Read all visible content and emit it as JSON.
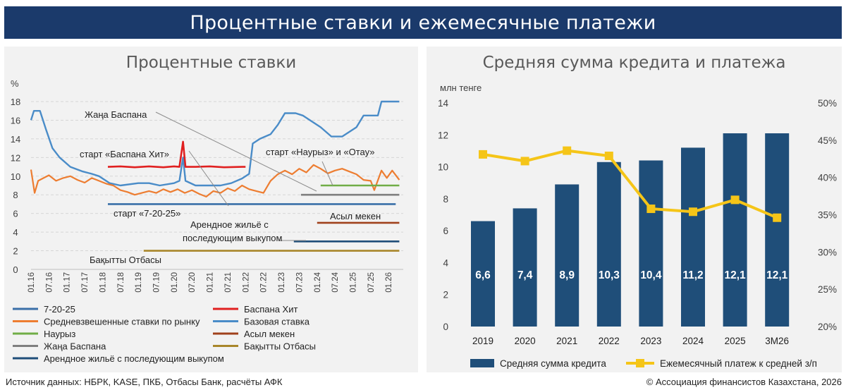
{
  "header": {
    "title": "Процентные ставки и ежемесячные платежи"
  },
  "footer": {
    "source": "Источник данных: НБРК, KASE, ПКБ, Отбасы Банк, расчёты АФК",
    "copyright": "© Ассоциация финансистов Казахстана, 2026"
  },
  "colors": {
    "blue_line": "#4a8cc8",
    "orange": "#ed7d31",
    "red": "#e02020",
    "green": "#70ad47",
    "gray": "#7f7f7f",
    "brown": "#a0411c",
    "gold": "#a8862a",
    "navy": "#1f4e79",
    "bar": "#1f4e79",
    "yellow": "#f5c518"
  },
  "chart_data": [
    {
      "type": "line",
      "title": "Процентные ставки",
      "ylabel": "%",
      "ylim": [
        0,
        18
      ],
      "yticks": [
        "0",
        "2",
        "4",
        "6",
        "8",
        "10",
        "12",
        "14",
        "16",
        "18"
      ],
      "x_ticks": [
        "01.16",
        "07.16",
        "01.17",
        "07.17",
        "01.18",
        "07.18",
        "01.19",
        "07.19",
        "01.20",
        "07.20",
        "01.21",
        "07.21",
        "01.22",
        "07.22",
        "01.23",
        "07.23",
        "01.24",
        "07.24",
        "01.25",
        "07.25",
        "01.26"
      ],
      "annotations": {
        "zhana": "Жаңа Баспана",
        "baspana": "старт «Баспана Хит»",
        "nauryz": "старт «Наурыз» и «Отау»",
        "s7": "старт «7-20-25»",
        "asyl": "Асыл мекен",
        "arend1": "Арендное жильё с",
        "arend2": "последующим выкупом",
        "bakyt": "Бақытты Отбасы"
      },
      "legend": [
        {
          "name": "7-20-25",
          "color": "#3a6fa8"
        },
        {
          "name": "Баспана Хит",
          "color": "#e02020"
        },
        {
          "name": "Средневзвешенные ставки по рынку",
          "color": "#ed7d31"
        },
        {
          "name": "Базовая ставка",
          "color": "#4a8cc8"
        },
        {
          "name": "Наурыз",
          "color": "#70ad47"
        },
        {
          "name": "Асыл мекен",
          "color": "#a0411c"
        },
        {
          "name": "Жаңа Баспана",
          "color": "#7f7f7f"
        },
        {
          "name": "Бақытты Отбасы",
          "color": "#a8862a"
        },
        {
          "name": "Арендное жильё с последующим выкупом",
          "color": "#1f4e79"
        }
      ],
      "series": [
        {
          "name": "Базовая ставка",
          "x": [
            2016.0,
            2016.08,
            2016.25,
            2016.42,
            2016.6,
            2016.8,
            2017.1,
            2017.45,
            2017.7,
            2017.9,
            2018.2,
            2018.5,
            2019.0,
            2019.3,
            2019.6,
            2020.0,
            2020.15,
            2020.25,
            2020.32,
            2020.6,
            2021.3,
            2021.6,
            2021.9,
            2022.1,
            2022.2,
            2022.4,
            2022.7,
            2022.9,
            2023.1,
            2023.4,
            2023.6,
            2023.9,
            2024.1,
            2024.4,
            2024.7,
            2025.1,
            2025.3,
            2025.7,
            2025.8,
            2026.3
          ],
          "y": [
            16,
            17,
            17,
            15,
            13,
            12,
            11,
            10.5,
            10.25,
            10,
            9.25,
            9,
            9.25,
            9.25,
            9,
            9.25,
            9.5,
            12,
            9.5,
            9,
            9,
            9.25,
            9.75,
            10.25,
            13.5,
            14,
            14.5,
            15.5,
            16.75,
            16.75,
            16.5,
            15.75,
            15.25,
            14.25,
            14.25,
            15.25,
            16.5,
            16.5,
            18,
            18
          ]
        },
        {
          "name": "Средневзвешенные ставки по рынку",
          "x": [
            2016.0,
            2016.1,
            2016.2,
            2016.35,
            2016.5,
            2016.7,
            2016.9,
            2017.1,
            2017.3,
            2017.5,
            2017.7,
            2017.9,
            2018.1,
            2018.3,
            2018.5,
            2018.7,
            2018.9,
            2019.1,
            2019.3,
            2019.5,
            2019.7,
            2019.9,
            2020.1,
            2020.3,
            2020.5,
            2020.7,
            2020.9,
            2021.1,
            2021.3,
            2021.5,
            2021.7,
            2021.9,
            2022.1,
            2022.3,
            2022.5,
            2022.7,
            2022.9,
            2023.1,
            2023.3,
            2023.5,
            2023.7,
            2023.9,
            2024.1,
            2024.3,
            2024.5,
            2024.7,
            2024.9,
            2025.1,
            2025.3,
            2025.5,
            2025.6,
            2025.8,
            2025.95,
            2026.1,
            2026.3
          ],
          "y": [
            10.7,
            8.2,
            9.5,
            9.8,
            10.1,
            9.5,
            9.8,
            10,
            9.6,
            9.3,
            9.8,
            9.5,
            9.2,
            9,
            8.5,
            8.3,
            8,
            8.2,
            8.4,
            8.2,
            8.6,
            8.3,
            8.6,
            8.2,
            8.5,
            8.1,
            7.8,
            8.4,
            8.2,
            8.7,
            8.4,
            9,
            8.6,
            8.4,
            8.2,
            9.5,
            10.2,
            10.6,
            10.2,
            10.8,
            10.4,
            11.2,
            10.8,
            10.3,
            10.6,
            10.8,
            10.5,
            10.2,
            9.6,
            9.5,
            8.5,
            10.6,
            9.8,
            10.6,
            9.6
          ]
        },
        {
          "name": "Баспана Хит",
          "x": [
            2018.15,
            2018.5,
            2018.9,
            2019.3,
            2019.7,
            2020.0,
            2020.15,
            2020.25,
            2020.32,
            2020.6,
            2021.0,
            2021.4,
            2021.9,
            2022.0
          ],
          "y": [
            11,
            11.05,
            10.95,
            11.05,
            10.95,
            11.05,
            11,
            13.7,
            11,
            11,
            11.05,
            10.95,
            11,
            11
          ]
        },
        {
          "name": "7-20-25",
          "x": [
            2018.15,
            2026.2
          ],
          "y": [
            7,
            7
          ]
        },
        {
          "name": "Наурыз",
          "x": [
            2024.1,
            2026.3
          ],
          "y": [
            9,
            9
          ]
        },
        {
          "name": "Жаңа Баспана",
          "x": [
            2023.55,
            2026.3
          ],
          "y": [
            8,
            8
          ]
        },
        {
          "name": "Асыл мекен",
          "x": [
            2024.0,
            2026.3
          ],
          "y": [
            5,
            5
          ]
        },
        {
          "name": "Арендное жильё с последующим выкупом",
          "x": [
            2023.35,
            2026.3
          ],
          "y": [
            3,
            3
          ]
        },
        {
          "name": "Бақытты Отбасы",
          "x": [
            2019.15,
            2026.3
          ],
          "y": [
            2,
            2
          ]
        }
      ]
    },
    {
      "type": "bar",
      "title": "Средняя сумма кредита и платежа",
      "ylabel": "млн тенге",
      "ylim": [
        0,
        14
      ],
      "yticks": [
        "0",
        "2",
        "4",
        "6",
        "8",
        "10",
        "12",
        "14"
      ],
      "y2lim": [
        20,
        50
      ],
      "y2ticks": [
        "20%",
        "25%",
        "30%",
        "35%",
        "40%",
        "45%",
        "50%"
      ],
      "categories": [
        "2019",
        "2020",
        "2021",
        "2022",
        "2023",
        "2024",
        "2025",
        "3М26"
      ],
      "series": [
        {
          "name": "Средняя сумма кредита",
          "values": [
            6.6,
            7.4,
            8.9,
            10.3,
            10.4,
            11.2,
            12.1,
            12.1
          ],
          "labels": [
            "6,6",
            "7,4",
            "8,9",
            "10,3",
            "10,4",
            "11,2",
            "12,1",
            "12,1"
          ]
        },
        {
          "name": "Ежемесячный платеж к средней з/п",
          "values": [
            43.1,
            42.2,
            43.6,
            42.9,
            35.8,
            35.4,
            37,
            34.6
          ]
        }
      ]
    }
  ]
}
